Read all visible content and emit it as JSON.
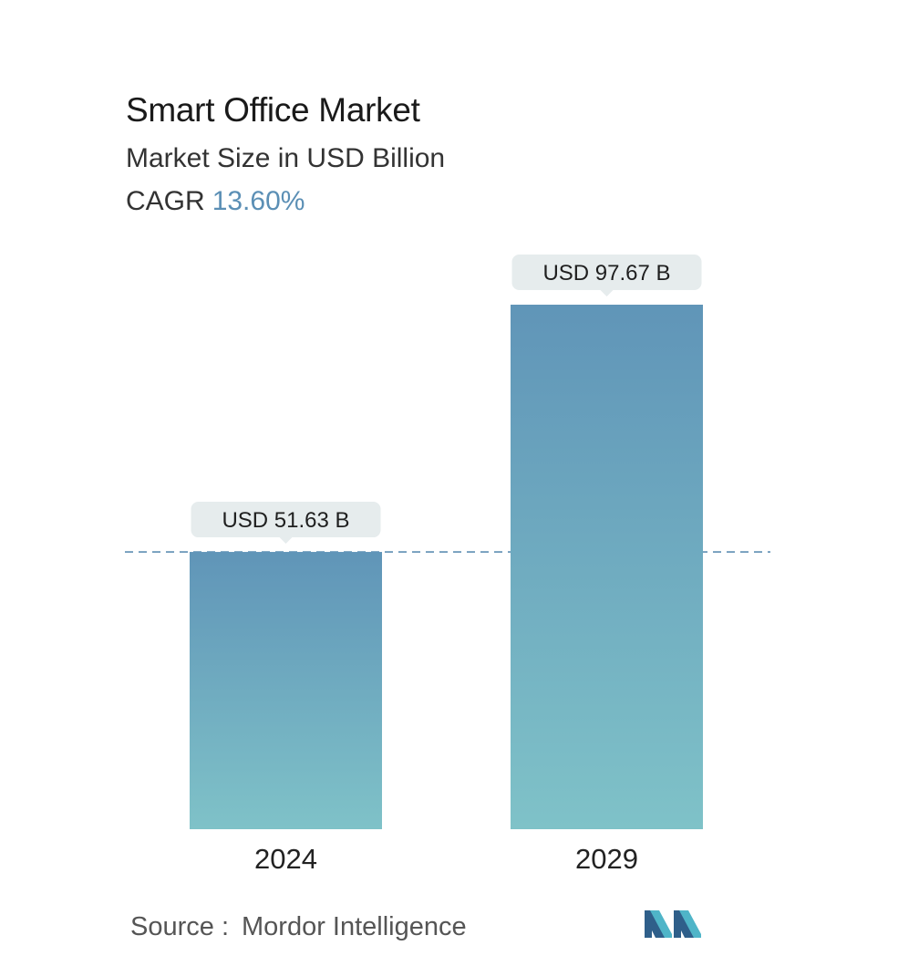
{
  "header": {
    "title": "Smart Office Market",
    "subtitle": "Market Size in USD Billion",
    "cagr_label": "CAGR",
    "cagr_value": "13.60%"
  },
  "colors": {
    "bar_top": "#6095b8",
    "bar_bottom": "#7fc2c8",
    "label_bg": "#e6eced",
    "dashed_line": "#5f8fb3",
    "cagr_accent": "#5b8fb5"
  },
  "chart_data": {
    "type": "bar",
    "title": "Smart Office Market",
    "subtitle": "Market Size in USD Billion",
    "categories": [
      "2024",
      "2029"
    ],
    "values": [
      51.63,
      97.67
    ],
    "data_labels": [
      "USD 51.63 B",
      "USD 97.67 B"
    ],
    "unit": "USD Billion",
    "xlabel": "",
    "ylabel": "",
    "ylim": [
      0,
      97.67
    ],
    "grid": false,
    "reference_line": {
      "value": 51.63,
      "style": "dashed"
    }
  },
  "footer": {
    "source_label": "Source :",
    "source_name": "Mordor Intelligence",
    "logo_icon": "mordor-intelligence-logo-icon"
  }
}
